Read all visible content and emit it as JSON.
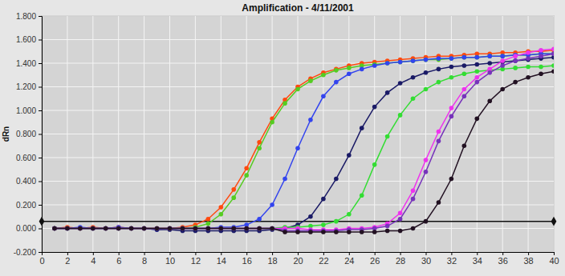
{
  "chart_data": {
    "type": "line",
    "title": "Amplification - 4/11/2001",
    "y_label": "dRn",
    "x": [
      1,
      2,
      3,
      4,
      5,
      6,
      7,
      8,
      9,
      10,
      11,
      12,
      13,
      14,
      15,
      16,
      17,
      18,
      19,
      20,
      21,
      22,
      23,
      24,
      25,
      26,
      27,
      28,
      29,
      30,
      31,
      32,
      33,
      34,
      35,
      36,
      37,
      38,
      39,
      40
    ],
    "series": [
      {
        "color": "#ff4a10",
        "marker": "circle",
        "values": [
          0.0,
          0.01,
          0.0,
          0.01,
          0.0,
          0.01,
          0.0,
          0.0,
          0.0,
          0.0,
          0.01,
          0.03,
          0.08,
          0.18,
          0.33,
          0.51,
          0.73,
          0.93,
          1.09,
          1.2,
          1.27,
          1.32,
          1.35,
          1.38,
          1.4,
          1.41,
          1.42,
          1.43,
          1.44,
          1.45,
          1.46,
          1.46,
          1.47,
          1.48,
          1.48,
          1.49,
          1.49,
          1.5,
          1.5,
          1.51
        ]
      },
      {
        "color": "#55cc22",
        "marker": "circle",
        "values": [
          0.0,
          0.0,
          0.0,
          0.0,
          0.0,
          0.0,
          0.0,
          0.0,
          0.0,
          0.0,
          0.0,
          0.01,
          0.04,
          0.12,
          0.26,
          0.45,
          0.68,
          0.9,
          1.06,
          1.18,
          1.25,
          1.3,
          1.34,
          1.36,
          1.38,
          1.39,
          1.4,
          1.41,
          1.42,
          1.43,
          1.43,
          1.44,
          1.45,
          1.45,
          1.46,
          1.46,
          1.47,
          1.47,
          1.48,
          1.48
        ]
      },
      {
        "color": "#3344ee",
        "marker": "circle",
        "values": [
          0.0,
          0.0,
          0.01,
          0.0,
          0.0,
          0.01,
          0.0,
          0.0,
          -0.01,
          0.0,
          0.0,
          0.0,
          0.0,
          0.01,
          0.01,
          0.03,
          0.08,
          0.2,
          0.42,
          0.68,
          0.92,
          1.12,
          1.24,
          1.31,
          1.35,
          1.38,
          1.4,
          1.41,
          1.42,
          1.43,
          1.44,
          1.44,
          1.45,
          1.45,
          1.46,
          1.46,
          1.47,
          1.47,
          1.48,
          1.48
        ]
      },
      {
        "color": "#1a1a66",
        "marker": "circle",
        "values": [
          0.0,
          0.0,
          0.0,
          0.0,
          0.0,
          0.0,
          0.0,
          0.0,
          -0.01,
          -0.01,
          -0.02,
          -0.02,
          -0.02,
          -0.02,
          -0.02,
          -0.02,
          -0.02,
          -0.01,
          0.0,
          0.03,
          0.1,
          0.25,
          0.42,
          0.62,
          0.85,
          1.03,
          1.15,
          1.23,
          1.28,
          1.32,
          1.35,
          1.37,
          1.38,
          1.39,
          1.4,
          1.41,
          1.42,
          1.43,
          1.44,
          1.45
        ]
      },
      {
        "color": "#33dd33",
        "marker": "circle",
        "values": [
          0.0,
          0.0,
          0.0,
          0.0,
          0.0,
          0.0,
          0.0,
          0.0,
          0.0,
          0.0,
          0.0,
          0.0,
          0.0,
          0.0,
          0.0,
          0.0,
          0.0,
          0.0,
          0.01,
          0.01,
          0.02,
          0.03,
          0.06,
          0.12,
          0.28,
          0.54,
          0.78,
          0.96,
          1.1,
          1.18,
          1.24,
          1.28,
          1.31,
          1.33,
          1.34,
          1.35,
          1.36,
          1.37,
          1.37,
          1.38
        ]
      },
      {
        "color": "#ee33ee",
        "marker": "circle",
        "values": [
          0.0,
          0.0,
          0.0,
          0.0,
          0.0,
          0.0,
          0.0,
          0.0,
          0.0,
          0.0,
          0.0,
          0.0,
          0.0,
          0.0,
          0.0,
          0.0,
          0.0,
          0.0,
          0.0,
          0.0,
          -0.01,
          -0.01,
          -0.01,
          0.0,
          0.0,
          0.01,
          0.04,
          0.13,
          0.32,
          0.58,
          0.82,
          1.02,
          1.18,
          1.28,
          1.35,
          1.42,
          1.46,
          1.49,
          1.51,
          1.52
        ]
      },
      {
        "color": "#7733bb",
        "marker": "circle",
        "values": [
          0.0,
          0.0,
          0.0,
          0.0,
          0.0,
          0.0,
          0.0,
          0.0,
          0.0,
          0.0,
          0.0,
          0.0,
          0.0,
          0.0,
          0.0,
          0.0,
          0.0,
          0.0,
          -0.02,
          -0.02,
          -0.02,
          -0.02,
          -0.02,
          -0.01,
          -0.01,
          0.0,
          0.02,
          0.08,
          0.25,
          0.48,
          0.74,
          0.95,
          1.12,
          1.24,
          1.32,
          1.38,
          1.42,
          1.44,
          1.46,
          1.48
        ]
      },
      {
        "color": "#221122",
        "marker": "circle",
        "values": [
          0.0,
          0.0,
          0.0,
          0.0,
          0.0,
          0.0,
          0.0,
          0.0,
          0.0,
          0.0,
          0.0,
          0.0,
          0.0,
          0.0,
          0.0,
          0.0,
          0.0,
          0.0,
          -0.03,
          -0.03,
          -0.03,
          -0.03,
          -0.03,
          -0.03,
          -0.03,
          -0.03,
          -0.02,
          -0.02,
          0.0,
          0.06,
          0.22,
          0.42,
          0.7,
          0.93,
          1.08,
          1.18,
          1.24,
          1.28,
          1.31,
          1.33
        ]
      }
    ],
    "threshold": 0.06,
    "xlim": [
      0,
      40
    ],
    "xticks": [
      0,
      2,
      4,
      6,
      8,
      10,
      12,
      14,
      16,
      18,
      20,
      22,
      24,
      26,
      28,
      30,
      32,
      34,
      36,
      38,
      40
    ],
    "ylim": [
      -0.2,
      1.8
    ],
    "yticks": [
      {
        "value": -0.2,
        "label": "-0.200"
      },
      {
        "value": 0,
        "label": "0.000"
      },
      {
        "value": 0.2,
        "label": "0.200"
      },
      {
        "value": 0.4,
        "label": "0.400"
      },
      {
        "value": 0.6,
        "label": "0.600"
      },
      {
        "value": 0.8,
        "label": "0.800"
      },
      {
        "value": 1.0,
        "label": "1.000"
      },
      {
        "value": 1.2,
        "label": "1.200"
      },
      {
        "value": 1.4,
        "label": "1.400"
      },
      {
        "value": 1.6,
        "label": "1.600"
      },
      {
        "value": 1.8,
        "label": "1.800"
      }
    ],
    "grid": true
  }
}
